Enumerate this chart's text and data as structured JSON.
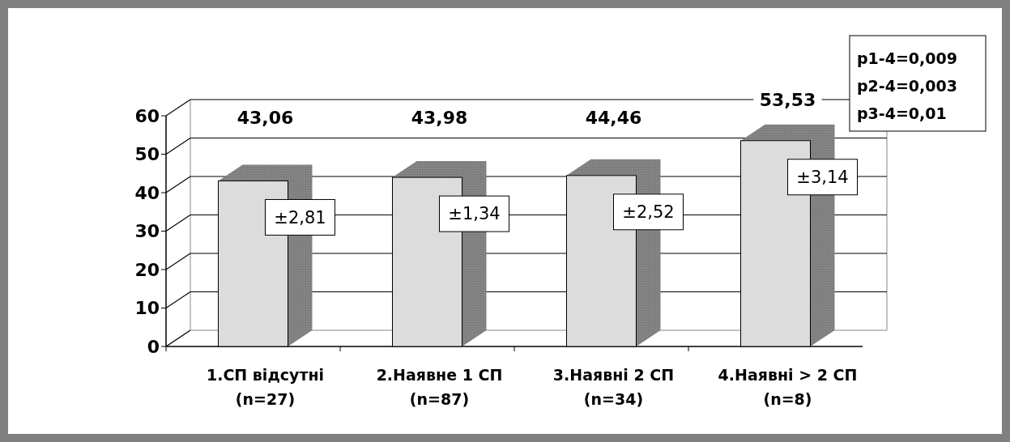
{
  "chart_data": {
    "type": "bar",
    "categories": [
      "1.СП відсутні\n(n=27)",
      "2.Наявне 1 СП\n(n=87)",
      "3.Наявні 2 СП\n(n=34)",
      "4.Наявні > 2 СП\n(n=8)"
    ],
    "values": [
      43.06,
      43.98,
      44.46,
      53.53
    ],
    "value_labels": [
      "43,06",
      "43,98",
      "44,46",
      "53,53"
    ],
    "color": "#dcdcdc",
    "ylim": [
      0,
      60
    ],
    "yticks": [
      0,
      10,
      20,
      30,
      40,
      50,
      60
    ],
    "grid": "y",
    "annotations": [
      {
        "text": "±2,81",
        "x": "1.СП відсутні\n(n=27)",
        "y": 43.06
      },
      {
        "text": "±1,34",
        "x": "2.Наявне 1 СП\n(n=87)",
        "y": 43.98
      },
      {
        "text": "±2,52",
        "x": "3.Наявні 2 СП\n(n=34)",
        "y": 44.46
      },
      {
        "text": "±3,14",
        "x": "4.Наявні > 2 СП\n(n=8)",
        "y": 53.53
      },
      "p1-4=0,009",
      "p2-4=0,003",
      "p3-4=0,01"
    ]
  }
}
